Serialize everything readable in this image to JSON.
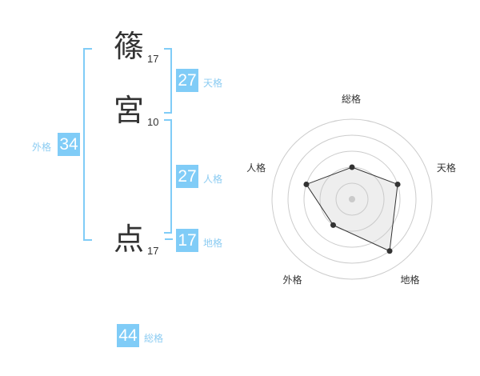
{
  "name": {
    "chars": [
      {
        "char": "篠",
        "strokes": "17"
      },
      {
        "char": "宮",
        "strokes": "10"
      },
      {
        "char": "点",
        "strokes": "17"
      }
    ]
  },
  "fortunes": {
    "tenkaku": {
      "value": "27",
      "label": "天格"
    },
    "jinkaku": {
      "value": "27",
      "label": "人格"
    },
    "chikaku": {
      "value": "17",
      "label": "地格"
    },
    "gaikaku": {
      "value": "34",
      "label": "外格"
    },
    "soukaku": {
      "value": "44",
      "label": "総格"
    }
  },
  "accent_color": "#80ccf7",
  "chart_data": {
    "type": "radar",
    "axes": [
      "総格",
      "天格",
      "地格",
      "外格",
      "人格"
    ],
    "values": [
      2,
      3,
      4,
      2,
      3
    ],
    "range": [
      0,
      5
    ],
    "rings": 5
  }
}
